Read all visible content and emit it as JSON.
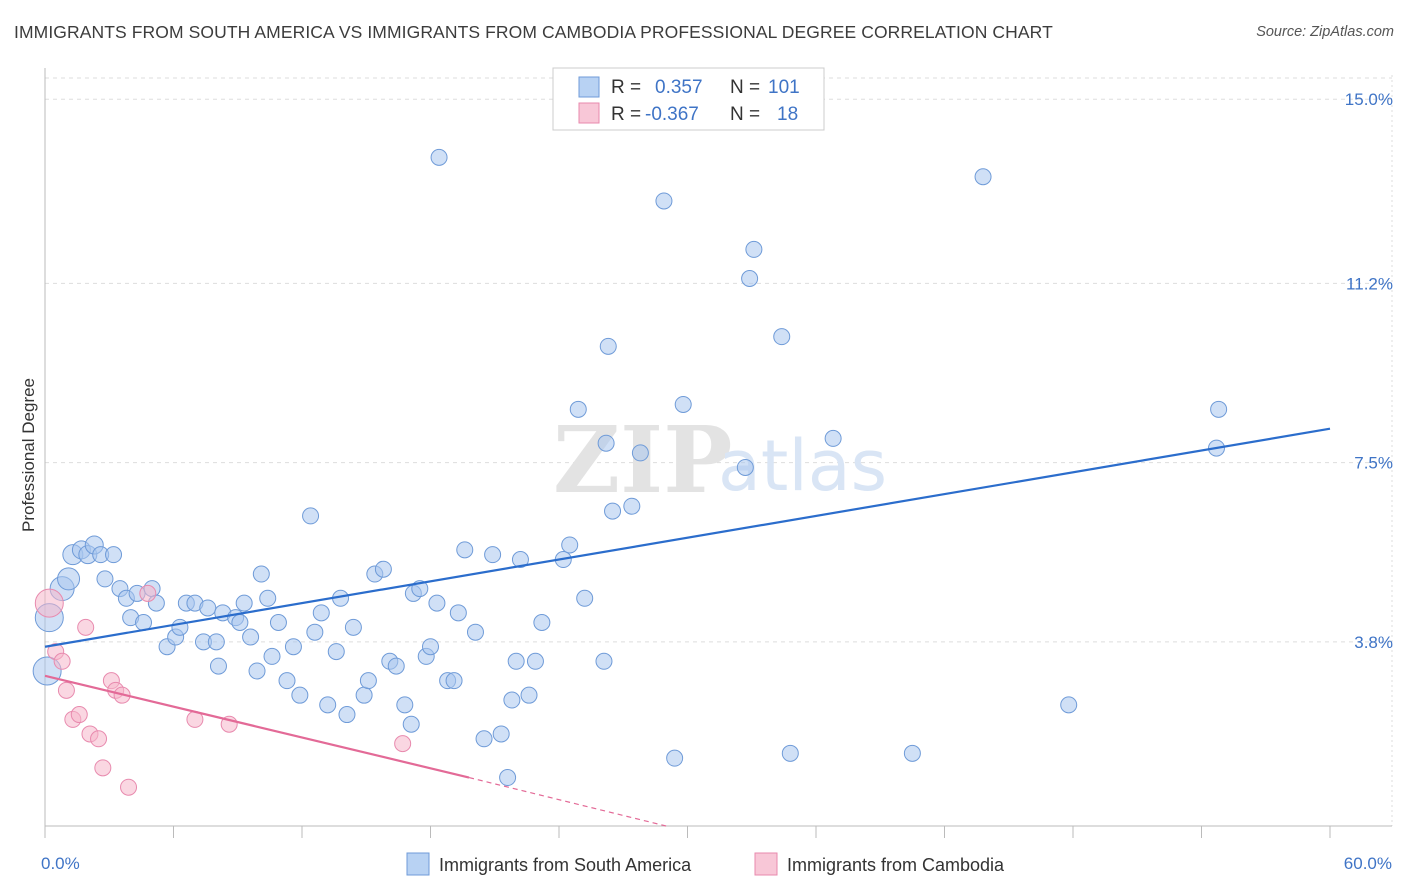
{
  "title": "IMMIGRANTS FROM SOUTH AMERICA VS IMMIGRANTS FROM CAMBODIA PROFESSIONAL DEGREE CORRELATION CHART",
  "source": "Source: ZipAtlas.com",
  "watermark": {
    "zip": "ZIP",
    "atlas": "atlas"
  },
  "colors": {
    "blue": "#3f74c6",
    "blue_fill": "#a9c6ef",
    "blue_line": "#2b6dcc",
    "pink_fill": "#f5b7cb",
    "pink_line": "#e36a97",
    "grid": "#dddddd"
  },
  "legend": {
    "rows": [
      {
        "r_label": "R =",
        "r_value": "0.357",
        "n_label": "N =",
        "n_value": "101"
      },
      {
        "r_label": "R =",
        "r_value": "-0.367",
        "n_label": "N =",
        "n_value": "18"
      }
    ]
  },
  "bottom_legend": [
    "Immigrants from South America",
    "Immigrants from Cambodia"
  ],
  "chart_data": {
    "type": "scatter",
    "ylabel": "Professional Degree",
    "xlim": [
      0,
      60
    ],
    "ylim": [
      0,
      15.5
    ],
    "x_tick_labels": [
      {
        "value": 0,
        "label": "0.0%"
      },
      {
        "value": 60,
        "label": "60.0%"
      }
    ],
    "y_tick_labels": [
      {
        "value": 3.8,
        "label": "3.8%"
      },
      {
        "value": 7.5,
        "label": "7.5%"
      },
      {
        "value": 11.2,
        "label": "11.2%"
      },
      {
        "value": 15.0,
        "label": "15.0%"
      }
    ],
    "series": [
      {
        "name": "Immigrants from South America",
        "r": 0.357,
        "n": 101,
        "trend": {
          "x0": 0,
          "y0": 3.7,
          "x1": 60,
          "y1": 8.2
        },
        "points": [
          [
            0.1,
            3.2,
            14
          ],
          [
            0.2,
            4.3,
            14
          ],
          [
            0.8,
            4.9,
            12
          ],
          [
            1.1,
            5.1,
            11
          ],
          [
            1.3,
            5.6,
            10
          ],
          [
            1.7,
            5.7,
            9
          ],
          [
            2.0,
            5.6,
            9
          ],
          [
            2.3,
            5.8,
            9
          ],
          [
            2.6,
            5.6,
            8
          ],
          [
            3.2,
            5.6,
            8
          ],
          [
            2.8,
            5.1,
            8
          ],
          [
            3.5,
            4.9,
            8
          ],
          [
            3.8,
            4.7,
            8
          ],
          [
            4.3,
            4.8,
            8
          ],
          [
            5.0,
            4.9,
            8
          ],
          [
            4.0,
            4.3,
            8
          ],
          [
            4.6,
            4.2,
            8
          ],
          [
            5.2,
            4.6,
            8
          ],
          [
            5.7,
            3.7,
            8
          ],
          [
            6.1,
            3.9,
            8
          ],
          [
            6.3,
            4.1,
            8
          ],
          [
            6.6,
            4.6,
            8
          ],
          [
            7.0,
            4.6,
            8
          ],
          [
            7.4,
            3.8,
            8
          ],
          [
            7.6,
            4.5,
            8
          ],
          [
            8.0,
            3.8,
            8
          ],
          [
            8.3,
            4.4,
            8
          ],
          [
            8.1,
            3.3,
            8
          ],
          [
            8.9,
            4.3,
            8
          ],
          [
            9.1,
            4.2,
            8
          ],
          [
            9.3,
            4.6,
            8
          ],
          [
            9.6,
            3.9,
            8
          ],
          [
            9.9,
            3.2,
            8
          ],
          [
            10.1,
            5.2,
            8
          ],
          [
            10.4,
            4.7,
            8
          ],
          [
            10.6,
            3.5,
            8
          ],
          [
            10.9,
            4.2,
            8
          ],
          [
            11.3,
            3.0,
            8
          ],
          [
            11.6,
            3.7,
            8
          ],
          [
            11.9,
            2.7,
            8
          ],
          [
            12.4,
            6.4,
            8
          ],
          [
            12.6,
            4.0,
            8
          ],
          [
            12.9,
            4.4,
            8
          ],
          [
            13.2,
            2.5,
            8
          ],
          [
            13.6,
            3.6,
            8
          ],
          [
            13.8,
            4.7,
            8
          ],
          [
            14.1,
            2.3,
            8
          ],
          [
            14.4,
            4.1,
            8
          ],
          [
            14.9,
            2.7,
            8
          ],
          [
            15.1,
            3.0,
            8
          ],
          [
            15.4,
            5.2,
            8
          ],
          [
            15.8,
            5.3,
            8
          ],
          [
            16.1,
            3.4,
            8
          ],
          [
            16.4,
            3.3,
            8
          ],
          [
            16.8,
            2.5,
            8
          ],
          [
            17.1,
            2.1,
            8
          ],
          [
            17.2,
            4.8,
            8
          ],
          [
            17.5,
            4.9,
            8
          ],
          [
            17.8,
            3.5,
            8
          ],
          [
            18.0,
            3.7,
            8
          ],
          [
            18.3,
            4.6,
            8
          ],
          [
            18.8,
            3.0,
            8
          ],
          [
            19.1,
            3.0,
            8
          ],
          [
            19.3,
            4.4,
            8
          ],
          [
            19.6,
            5.7,
            8
          ],
          [
            20.1,
            4.0,
            8
          ],
          [
            20.5,
            1.8,
            8
          ],
          [
            20.9,
            5.6,
            8
          ],
          [
            21.3,
            1.9,
            8
          ],
          [
            21.6,
            1.0,
            8
          ],
          [
            21.8,
            2.6,
            8
          ],
          [
            22.0,
            3.4,
            8
          ],
          [
            22.2,
            5.5,
            8
          ],
          [
            22.6,
            2.7,
            8
          ],
          [
            22.9,
            3.4,
            8
          ],
          [
            23.2,
            4.2,
            8
          ],
          [
            24.2,
            5.5,
            8
          ],
          [
            24.5,
            5.8,
            8
          ],
          [
            24.9,
            8.6,
            8
          ],
          [
            25.2,
            4.7,
            8
          ],
          [
            26.2,
            7.9,
            8
          ],
          [
            26.5,
            6.5,
            8
          ],
          [
            26.3,
            9.9,
            8
          ],
          [
            27.4,
            6.6,
            8
          ],
          [
            27.8,
            7.7,
            8
          ],
          [
            28.9,
            12.9,
            8
          ],
          [
            29.8,
            8.7,
            8
          ],
          [
            18.4,
            13.8,
            8
          ],
          [
            32.7,
            7.4,
            8
          ],
          [
            32.9,
            11.3,
            8
          ],
          [
            33.1,
            11.9,
            8
          ],
          [
            34.4,
            10.1,
            8
          ],
          [
            34.8,
            1.5,
            8
          ],
          [
            36.8,
            8.0,
            8
          ],
          [
            40.5,
            1.5,
            8
          ],
          [
            43.8,
            13.4,
            8
          ],
          [
            47.8,
            2.5,
            8
          ],
          [
            54.7,
            7.8,
            8
          ],
          [
            54.8,
            8.6,
            8
          ],
          [
            29.4,
            1.4,
            8
          ],
          [
            26.1,
            3.4,
            8
          ]
        ]
      },
      {
        "name": "Immigrants from Cambodia",
        "r": -0.367,
        "n": 18,
        "trend": {
          "x0": 0,
          "y0": 3.1,
          "x1": 19.8,
          "y1": 1.0,
          "dash_x1": 29.0,
          "dash_y1": 0.0
        },
        "points": [
          [
            0.2,
            4.6,
            14
          ],
          [
            0.5,
            3.6,
            8
          ],
          [
            0.8,
            3.4,
            8
          ],
          [
            1.0,
            2.8,
            8
          ],
          [
            1.3,
            2.2,
            8
          ],
          [
            1.6,
            2.3,
            8
          ],
          [
            1.9,
            4.1,
            8
          ],
          [
            2.1,
            1.9,
            8
          ],
          [
            2.5,
            1.8,
            8
          ],
          [
            2.7,
            1.2,
            8
          ],
          [
            3.1,
            3.0,
            8
          ],
          [
            3.3,
            2.8,
            8
          ],
          [
            3.6,
            2.7,
            8
          ],
          [
            3.9,
            0.8,
            8
          ],
          [
            4.8,
            4.8,
            8
          ],
          [
            7.0,
            2.2,
            8
          ],
          [
            8.6,
            2.1,
            8
          ],
          [
            16.7,
            1.7,
            8
          ]
        ]
      }
    ]
  }
}
